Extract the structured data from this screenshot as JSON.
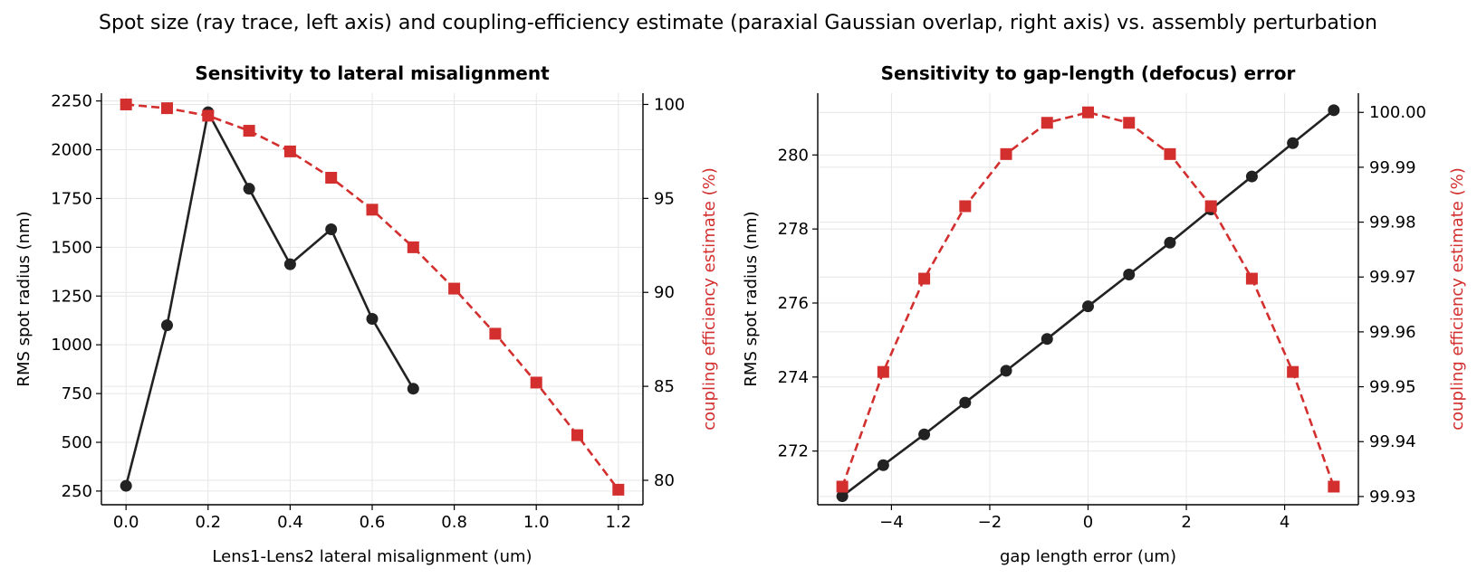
{
  "figure": {
    "suptitle": "Spot size (ray trace, left axis) and coupling-efficiency estimate (paraxial Gaussian overlap, right axis) vs. assembly perturbation"
  },
  "colors": {
    "spot_series": "#222222",
    "coupling_series": "#d32f2f",
    "grid": "#e6e6e6",
    "axis": "#000000"
  },
  "chart_data": [
    {
      "type": "line",
      "title": "Sensitivity to lateral misalignment",
      "xlabel": "Lens1-Lens2 lateral misalignment (um)",
      "ylabel": "RMS spot radius (nm)",
      "y2label": "coupling efficiency estimate (%)",
      "xlim": [
        -0.06,
        1.26
      ],
      "ylim": [
        180,
        2290
      ],
      "y2lim": [
        78.7,
        100.6
      ],
      "xticks": [
        0.0,
        0.2,
        0.4,
        0.6,
        0.8,
        1.0,
        1.2
      ],
      "xtick_labels": [
        "0.0",
        "0.2",
        "0.4",
        "0.6",
        "0.8",
        "1.0",
        "1.2"
      ],
      "yticks": [
        250,
        500,
        750,
        1000,
        1250,
        1500,
        1750,
        2000,
        2250
      ],
      "ytick_labels": [
        "250",
        "500",
        "750",
        "1000",
        "1250",
        "1500",
        "1750",
        "2000",
        "2250"
      ],
      "y2ticks": [
        80,
        85,
        90,
        95,
        100
      ],
      "y2tick_labels": [
        "80",
        "85",
        "90",
        "95",
        "100"
      ],
      "grid": true,
      "series": [
        {
          "axis": "left",
          "marker": "circle",
          "linestyle": "solid",
          "x": [
            0.0,
            0.1,
            0.2,
            0.3,
            0.4,
            0.5,
            0.6,
            0.7
          ],
          "y": [
            277,
            1100,
            2192,
            1800,
            1413,
            1592,
            1133,
            775
          ]
        },
        {
          "axis": "right",
          "marker": "square",
          "linestyle": "dashed",
          "x": [
            0.0,
            0.1,
            0.2,
            0.3,
            0.4,
            0.5,
            0.6,
            0.7,
            0.8,
            0.9,
            1.0,
            1.1,
            1.2
          ],
          "y": [
            100.0,
            99.8,
            99.4,
            98.6,
            97.5,
            96.1,
            94.4,
            92.4,
            90.2,
            87.8,
            85.2,
            82.4,
            79.5
          ]
        }
      ]
    },
    {
      "type": "line",
      "title": "Sensitivity to gap-length (defocus) error",
      "xlabel": "gap length error (um)",
      "ylabel": "RMS spot radius (nm)",
      "y2label": "coupling efficiency estimate (%)",
      "xlim": [
        -5.5,
        5.5
      ],
      "ylim": [
        270.55,
        281.67
      ],
      "y2lim": [
        99.9285,
        100.0035
      ],
      "xticks": [
        -4,
        -2,
        0,
        2,
        4
      ],
      "xtick_labels": [
        "−4",
        "−2",
        "0",
        "2",
        "4"
      ],
      "yticks": [
        272,
        274,
        276,
        278,
        280
      ],
      "ytick_labels": [
        "272",
        "274",
        "276",
        "278",
        "280"
      ],
      "y2ticks": [
        99.93,
        99.94,
        99.95,
        99.96,
        99.97,
        99.98,
        99.99,
        100.0
      ],
      "y2tick_labels": [
        "99.93",
        "99.94",
        "99.95",
        "99.96",
        "99.97",
        "99.98",
        "99.99",
        "100.00"
      ],
      "grid": true,
      "series": [
        {
          "axis": "left",
          "marker": "circle",
          "linestyle": "solid",
          "x": [
            -5.0,
            -4.1667,
            -3.3333,
            -2.5,
            -1.6667,
            -0.8333,
            0.0,
            0.8333,
            1.6667,
            2.5,
            3.3333,
            4.1667,
            5.0
          ],
          "y": [
            270.78,
            271.62,
            272.45,
            273.31,
            274.17,
            275.03,
            275.91,
            276.77,
            277.63,
            278.53,
            279.42,
            280.32,
            281.21
          ]
        },
        {
          "axis": "right",
          "marker": "square",
          "linestyle": "dashed",
          "x": [
            -5.0,
            -4.1667,
            -3.3333,
            -2.5,
            -1.6667,
            -0.8333,
            0.0,
            0.8333,
            1.6667,
            2.5,
            3.3333,
            4.1667,
            5.0
          ],
          "y": [
            99.9318,
            99.9527,
            99.9697,
            99.9829,
            99.9924,
            99.9981,
            100.0,
            99.9981,
            99.9924,
            99.9829,
            99.9697,
            99.9527,
            99.9318
          ]
        }
      ]
    }
  ]
}
